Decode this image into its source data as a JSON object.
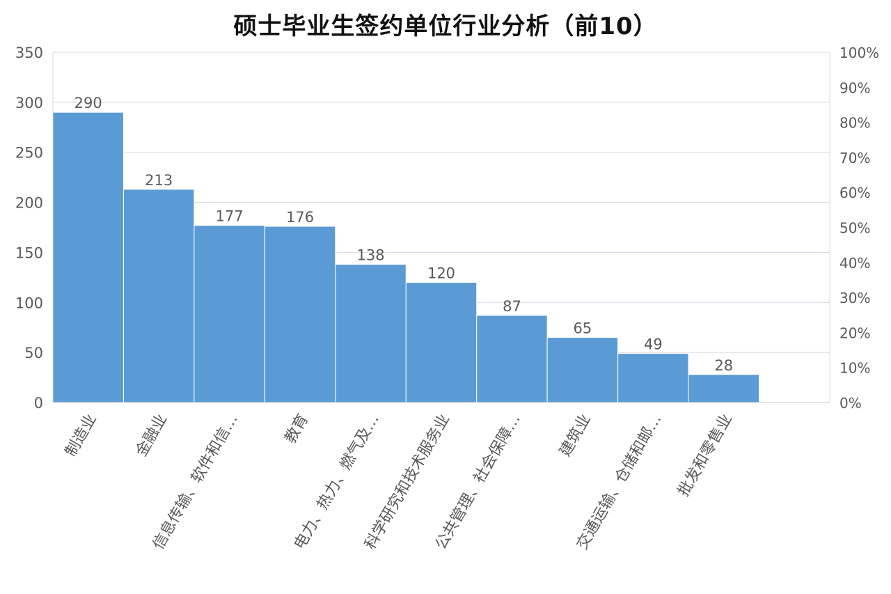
{
  "chart_data": {
    "type": "bar",
    "title": "硕士毕业生签约单位行业分析（前10）",
    "categories": [
      "制造业",
      "金融业",
      "信息传输、软件和信…",
      "教育",
      "电力、热力、燃气及…",
      "科学研究和技术服务业",
      "公共管理、社会保障…",
      "建筑业",
      "交通运输、仓储和邮…",
      "批发和零售业"
    ],
    "values": [
      290,
      213,
      177,
      176,
      138,
      120,
      87,
      65,
      49,
      28
    ],
    "ylim": [
      0,
      350
    ],
    "yticks": [
      0,
      50,
      100,
      150,
      200,
      250,
      300,
      350
    ],
    "y2lim": [
      0,
      1
    ],
    "y2ticks": [
      "0%",
      "10%",
      "20%",
      "30%",
      "40%",
      "50%",
      "60%",
      "70%",
      "80%",
      "90%",
      "100%"
    ],
    "grid": true,
    "data_labels": true,
    "colors": {
      "bar": "#5b9bd5",
      "bar_edge": "#ffffff",
      "grid": "#dcd3e6",
      "axis": "#d9d9d9",
      "tick_text": "#595959",
      "label_text": "#595959",
      "title": "#111111"
    }
  }
}
